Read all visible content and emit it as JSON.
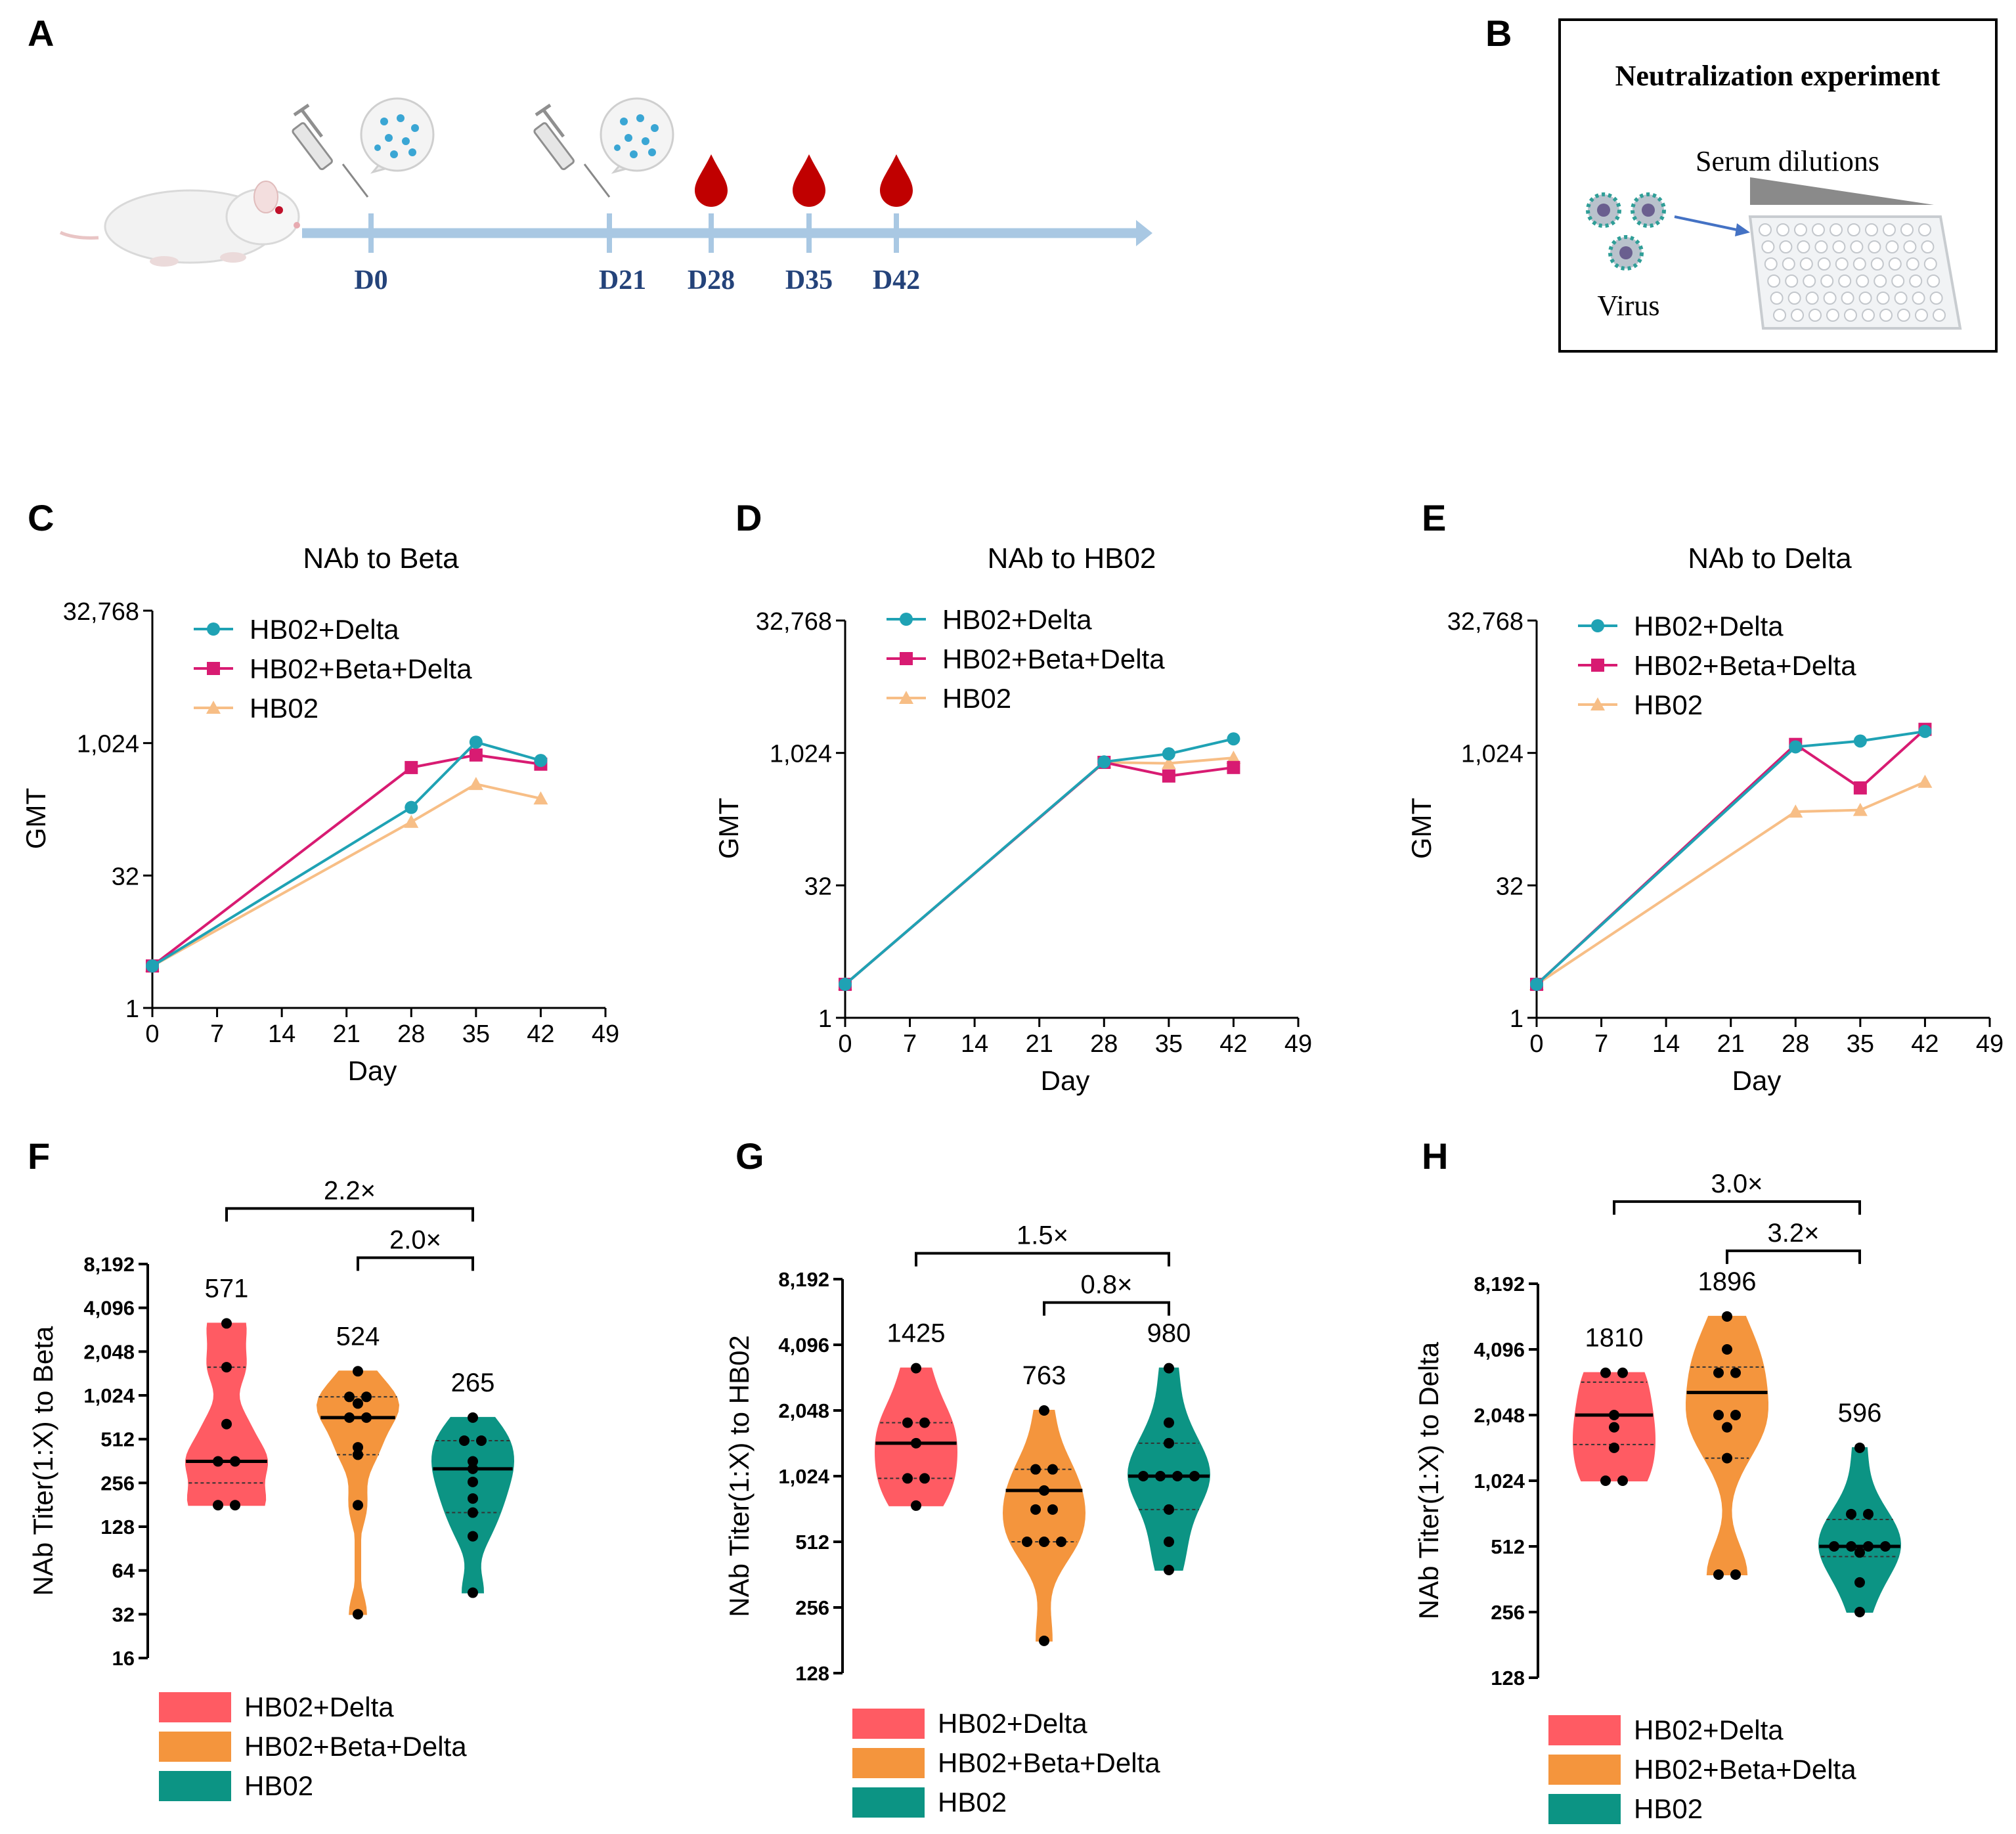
{
  "panel_letters": [
    "A",
    "B",
    "C",
    "D",
    "E",
    "F",
    "G",
    "H"
  ],
  "timeline": {
    "days": [
      "D0",
      "D21",
      "D28",
      "D35",
      "D42"
    ],
    "injection_days": [
      "D0",
      "D21"
    ],
    "bleed_days": [
      "D28",
      "D35",
      "D42"
    ]
  },
  "neutralization": {
    "title": "Neutralization experiment",
    "serum_label": "Serum dilutions",
    "virus_label": "Virus"
  },
  "colors": {
    "HB02+Delta": "#1FA2B4",
    "HB02+Beta+Delta": "#D81B72",
    "HB02": "#F7BE86",
    "violin_HB02+Delta": "#FF5B63",
    "violin_HB02+Beta+Delta": "#F4953D",
    "violin_HB02": "#0C9484",
    "axis": "#000000",
    "timeline": "#A9C8E3",
    "day_label": "#24437A",
    "blood": "#C00000"
  },
  "chart_data": [
    {
      "panel": "C",
      "type": "line",
      "title": "NAb to Beta",
      "xlabel": "Day",
      "ylabel": "GMT",
      "x_ticks": [
        0,
        7,
        14,
        21,
        28,
        35,
        42,
        49
      ],
      "xlim": [
        0,
        49
      ],
      "y_scale": "log2",
      "ylim": [
        1,
        32768
      ],
      "y_ticks": [
        1,
        32,
        1024,
        32768
      ],
      "y_tick_labels": [
        "1",
        "32",
        "1,024",
        "32,768"
      ],
      "x": [
        0,
        28,
        35,
        42
      ],
      "series": [
        {
          "name": "HB02+Delta",
          "marker": "circle",
          "values": [
            3,
            190,
            1050,
            650
          ]
        },
        {
          "name": "HB02+Beta+Delta",
          "marker": "square",
          "values": [
            3,
            540,
            750,
            590
          ]
        },
        {
          "name": "HB02",
          "marker": "triangle",
          "values": [
            3,
            130,
            350,
            240
          ]
        }
      ]
    },
    {
      "panel": "D",
      "type": "line",
      "title": "NAb to HB02",
      "xlabel": "Day",
      "ylabel": "GMT",
      "x_ticks": [
        0,
        7,
        14,
        21,
        28,
        35,
        42,
        49
      ],
      "xlim": [
        0,
        49
      ],
      "y_scale": "log2",
      "ylim": [
        1,
        32768
      ],
      "y_ticks": [
        1,
        32,
        1024,
        32768
      ],
      "y_tick_labels": [
        "1",
        "32",
        "1,024",
        "32,768"
      ],
      "x": [
        0,
        28,
        35,
        42
      ],
      "series": [
        {
          "name": "HB02+Delta",
          "marker": "circle",
          "values": [
            2.4,
            810,
            1000,
            1480
          ]
        },
        {
          "name": "HB02+Beta+Delta",
          "marker": "square",
          "values": [
            2.4,
            800,
            560,
            700
          ]
        },
        {
          "name": "HB02",
          "marker": "triangle",
          "values": [
            2.4,
            800,
            780,
            900
          ]
        }
      ]
    },
    {
      "panel": "E",
      "type": "line",
      "title": "NAb to Delta",
      "xlabel": "Day",
      "ylabel": "GMT",
      "x_ticks": [
        0,
        7,
        14,
        21,
        28,
        35,
        42,
        49
      ],
      "xlim": [
        0,
        49
      ],
      "y_scale": "log2",
      "ylim": [
        1,
        32768
      ],
      "y_ticks": [
        1,
        32,
        1024,
        32768
      ],
      "y_tick_labels": [
        "1",
        "32",
        "1,024",
        "32,768"
      ],
      "x": [
        0,
        28,
        35,
        42
      ],
      "series": [
        {
          "name": "HB02+Delta",
          "marker": "circle",
          "values": [
            2.4,
            1200,
            1400,
            1800
          ]
        },
        {
          "name": "HB02+Beta+Delta",
          "marker": "square",
          "values": [
            2.4,
            1280,
            410,
            1900
          ]
        },
        {
          "name": "HB02",
          "marker": "triangle",
          "values": [
            2.4,
            220,
            230,
            480
          ]
        }
      ]
    },
    {
      "panel": "F",
      "type": "violin",
      "ylabel": "NAb Titer(1:X) to Beta",
      "y_scale": "log2",
      "ylim": [
        16,
        8192
      ],
      "y_ticks": [
        16,
        32,
        64,
        128,
        256,
        512,
        1024,
        2048,
        4096,
        8192
      ],
      "y_tick_labels": [
        "16",
        "32",
        "64",
        "128",
        "256",
        "512",
        "1,024",
        "2,048",
        "4,096",
        "8,192"
      ],
      "groups": [
        {
          "name": "HB02+Delta",
          "gmt_label": "571",
          "median": 360,
          "q1": 256,
          "q3": 1600,
          "min": 180,
          "max": 3200,
          "points": [
            3200,
            1600,
            650,
            360,
            360,
            180,
            180
          ]
        },
        {
          "name": "HB02+Beta+Delta",
          "gmt_label": "524",
          "median": 720,
          "q1": 400,
          "q3": 1000,
          "min": 32,
          "max": 1500,
          "points": [
            1500,
            1000,
            1000,
            900,
            720,
            720,
            450,
            400,
            180,
            32
          ]
        },
        {
          "name": "HB02",
          "gmt_label": "265",
          "median": 320,
          "q1": 160,
          "q3": 500,
          "min": 45,
          "max": 720,
          "points": [
            720,
            500,
            500,
            360,
            320,
            260,
            200,
            160,
            110,
            45
          ]
        }
      ],
      "comparisons": [
        {
          "from": 0,
          "to": 2,
          "label": "2.2×"
        },
        {
          "from": 1,
          "to": 2,
          "label": "2.0×"
        }
      ]
    },
    {
      "panel": "G",
      "type": "violin",
      "ylabel": "NAb Titer(1:X) to HB02",
      "y_scale": "log2",
      "ylim": [
        128,
        8192
      ],
      "y_ticks": [
        128,
        256,
        512,
        1024,
        2048,
        4096,
        8192
      ],
      "y_tick_labels": [
        "128",
        "256",
        "512",
        "1,024",
        "2,048",
        "4,096",
        "8,192"
      ],
      "groups": [
        {
          "name": "HB02+Delta",
          "gmt_label": "1425",
          "median": 1450,
          "q1": 1000,
          "q3": 1800,
          "min": 750,
          "max": 3200,
          "points": [
            3200,
            1800,
            1800,
            1450,
            1000,
            1000,
            750
          ]
        },
        {
          "name": "HB02+Beta+Delta",
          "gmt_label": "763",
          "median": 880,
          "q1": 512,
          "q3": 1100,
          "min": 180,
          "max": 2048,
          "points": [
            2048,
            1100,
            1100,
            880,
            720,
            720,
            512,
            512,
            512,
            180
          ]
        },
        {
          "name": "HB02",
          "gmt_label": "980",
          "median": 1024,
          "q1": 720,
          "q3": 1450,
          "min": 380,
          "max": 3200,
          "points": [
            3200,
            1800,
            1450,
            1024,
            1024,
            1024,
            1024,
            720,
            512,
            380
          ]
        }
      ],
      "comparisons": [
        {
          "from": 0,
          "to": 2,
          "label": "1.5×"
        },
        {
          "from": 1,
          "to": 2,
          "label": "0.8×"
        }
      ]
    },
    {
      "panel": "H",
      "type": "violin",
      "ylabel": "NAb Titer(1:X) to Delta",
      "y_scale": "log2",
      "ylim": [
        128,
        8192
      ],
      "y_ticks": [
        128,
        256,
        512,
        1024,
        2048,
        4096,
        8192
      ],
      "y_tick_labels": [
        "128",
        "256",
        "512",
        "1,024",
        "2,048",
        "4,096",
        "8,192"
      ],
      "groups": [
        {
          "name": "HB02+Delta",
          "gmt_label": "1810",
          "median": 2048,
          "q1": 1500,
          "q3": 2900,
          "min": 1024,
          "max": 3200,
          "points": [
            3200,
            3200,
            2048,
            1800,
            1450,
            1024,
            1024
          ]
        },
        {
          "name": "HB02+Beta+Delta",
          "gmt_label": "1896",
          "median": 2600,
          "q1": 1300,
          "q3": 3400,
          "min": 380,
          "max": 5800,
          "points": [
            5800,
            4096,
            3200,
            3200,
            2048,
            2048,
            1800,
            1300,
            380,
            380
          ]
        },
        {
          "name": "HB02",
          "gmt_label": "596",
          "median": 512,
          "q1": 460,
          "q3": 680,
          "min": 256,
          "max": 1450,
          "points": [
            1450,
            720,
            720,
            512,
            512,
            512,
            512,
            480,
            350,
            256
          ]
        }
      ],
      "comparisons": [
        {
          "from": 0,
          "to": 2,
          "label": "3.0×"
        },
        {
          "from": 1,
          "to": 2,
          "label": "3.2×"
        }
      ]
    }
  ]
}
